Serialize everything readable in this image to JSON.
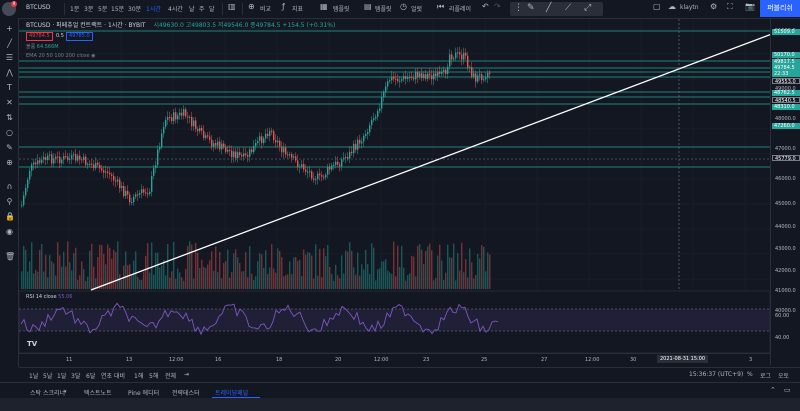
{
  "topbar": {
    "symbol": "BTCUSD",
    "intervals": [
      "1분",
      "3분",
      "5분",
      "15분",
      "30분",
      "1시간",
      "4시간",
      "날",
      "주",
      "달"
    ],
    "active_interval": "1시간",
    "compare": "비교",
    "indicators": "지표",
    "templates": "템플릿",
    "alert": "얼럿",
    "replay": "리플레이",
    "layout_name": "klaytn",
    "publish": "퍼블리쉬",
    "notification_count": "9"
  },
  "info": {
    "title": "BTCUSD · 퍼페츄얼 컨트랙트 · 1시간 · BYBIT",
    "ohlc": "시49630.0 고49803.5 저49546.0 종49784.5 +154.5 (+0.31%)",
    "sell_price": "49784.5",
    "spread": "0.5",
    "buy_price": "49785.0",
    "volume_label": "볼륨",
    "volume_value": "64.566M",
    "ema_label": "EMA 20 50 100 200 close"
  },
  "chart_data": {
    "type": "line",
    "title": "BTCUSD · 퍼페츄얼 컨트랙트 · 1시간 · BYBIT",
    "y_ticks": [
      "51500.0",
      "50000.0",
      "49000.0",
      "48000.0",
      "47000.0",
      "46000.0",
      "45000.0",
      "44000.0",
      "43000.0",
      "42000.0",
      "41000.0",
      "40000.0"
    ],
    "price_labels": [
      {
        "text": "51509.0",
        "color": "#26a69a"
      },
      {
        "text": "50170.0",
        "color": "#26a69a"
      },
      {
        "text": "49817.5",
        "color": "#26a69a"
      },
      {
        "text": "49784.5",
        "color": "#26a69a"
      },
      {
        "text": "22:33",
        "color": "#26a69a"
      },
      {
        "text": "49553.0",
        "color": "#ffffff"
      },
      {
        "text": "48762.5",
        "color": "#26a69a"
      },
      {
        "text": "48540.5",
        "color": "#ffffff"
      },
      {
        "text": "48310.0",
        "color": "#26a69a"
      },
      {
        "text": "47260.0",
        "color": "#26a69a"
      },
      {
        "text": "45779.0",
        "color": "#ffffff"
      }
    ],
    "x_ticks": [
      "11",
      "13",
      "12:00",
      "16",
      "18",
      "20",
      "12:00",
      "23",
      "25",
      "27",
      "12:00",
      "30",
      "2021-08-31",
      "3"
    ],
    "rsi": {
      "label": "RSI 14 close",
      "value": "55.06",
      "ticks": [
        "60.00",
        "40.00"
      ]
    }
  },
  "time_axis": {
    "highlight_date": "2021-08-31",
    "highlight_time": "15:00"
  },
  "range_bar": {
    "ranges": [
      "1날",
      "5날",
      "1달",
      "3달",
      "6달",
      "연초 대비",
      "1해",
      "5해",
      "전체"
    ],
    "clock": "15:36:37 (UTC+9)",
    "percent": "%",
    "log": "로그",
    "auto": "오토"
  },
  "bottom_tabs": {
    "tabs": [
      "스탁 스크리너",
      "텍스트노트",
      "Pine 에디터",
      "전략테스터",
      "트레이딩패널"
    ],
    "active": "트레이딩패널"
  },
  "colors": {
    "up": "#26a69a",
    "down": "#ef5350",
    "accent": "#2962ff",
    "bg": "#131722"
  }
}
